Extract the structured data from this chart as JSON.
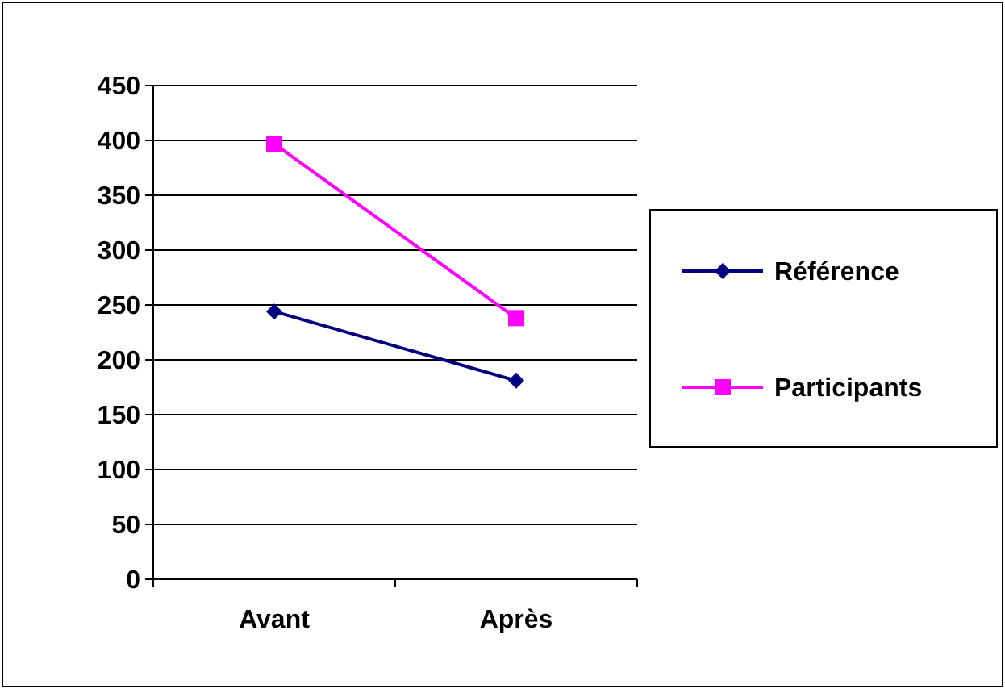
{
  "chart_data": {
    "type": "line",
    "categories": [
      "Avant",
      "Après"
    ],
    "series": [
      {
        "name": "Référence",
        "color": "#000080",
        "values": [
          244,
          181
        ],
        "marker": "diamond"
      },
      {
        "name": "Participants",
        "color": "#ff00ff",
        "values": [
          397,
          238
        ],
        "marker": "square"
      }
    ],
    "ylim": [
      0,
      450
    ],
    "yticks": [
      0,
      50,
      100,
      150,
      200,
      250,
      300,
      350,
      400,
      450
    ],
    "grid": "y",
    "legend": "right"
  }
}
